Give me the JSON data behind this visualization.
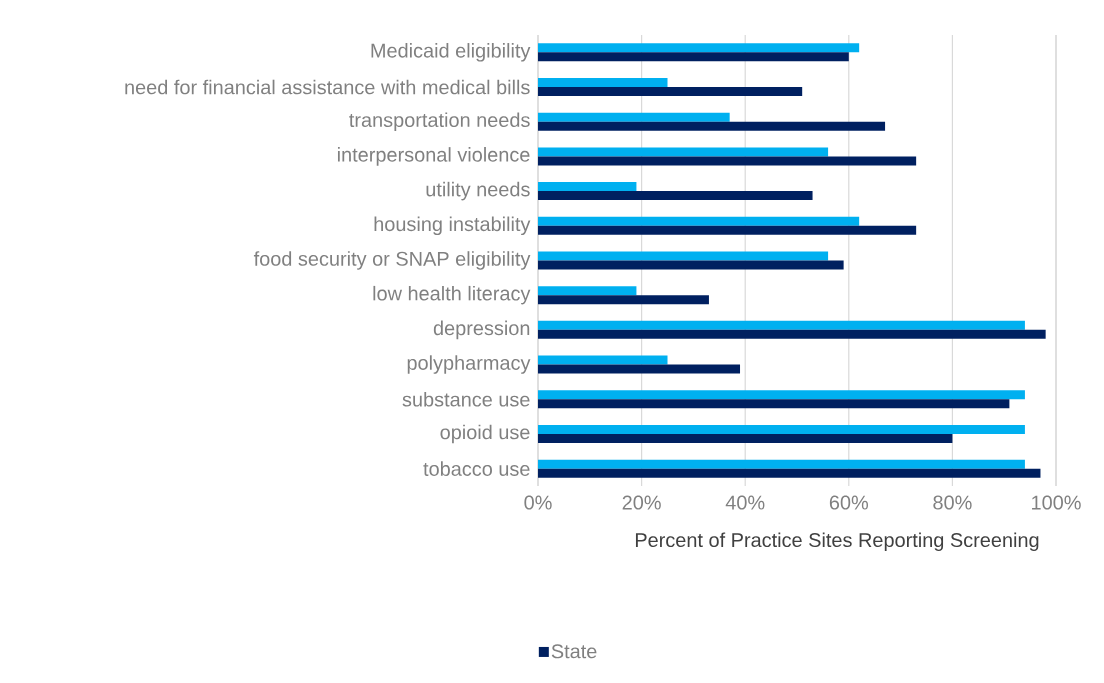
{
  "chart_data": {
    "type": "bar",
    "orientation": "horizontal",
    "categories": [
      "Medicaid eligibility",
      "need for financial assistance with medical bills",
      "transportation needs",
      "interpersonal violence",
      "utility needs",
      "housing instability",
      "food security or SNAP eligibility",
      "low health literacy",
      "depression",
      "polypharmacy",
      "substance use",
      "opioid use",
      "tobacco use"
    ],
    "series": [
      {
        "color": "#00b0f0",
        "values": [
          62,
          25,
          37,
          56,
          19,
          62,
          56,
          19,
          94,
          25,
          94,
          94,
          94
        ]
      },
      {
        "name": "State",
        "color": "#002060",
        "values": [
          60,
          51,
          67,
          73,
          53,
          73,
          59,
          33,
          98,
          39,
          91,
          80,
          97
        ]
      }
    ],
    "xlabel": "Percent of Practice Sites Reporting Screening",
    "xlim": [
      0,
      100
    ],
    "xticks": [
      {
        "value": 0,
        "label": "0%"
      },
      {
        "value": 20,
        "label": "20%"
      },
      {
        "value": 40,
        "label": "40%"
      },
      {
        "value": 60,
        "label": "60%"
      },
      {
        "value": 80,
        "label": "80%"
      },
      {
        "value": 100,
        "label": "100%"
      }
    ],
    "grid": "x",
    "legend": "bottom"
  }
}
